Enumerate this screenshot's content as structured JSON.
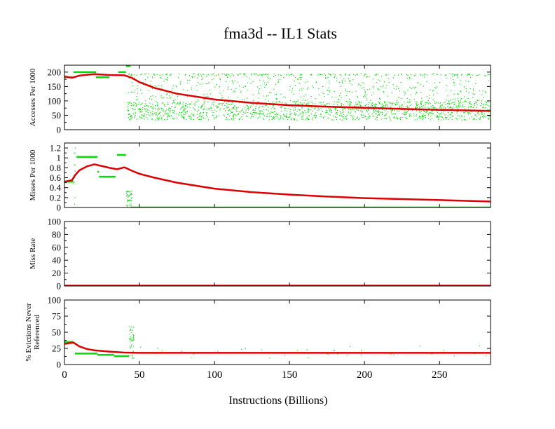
{
  "chart_data": {
    "type": "scatter",
    "title": "fma3d -- IL1  Stats",
    "xlabel": "Instructions (Billions)",
    "xlim": [
      0,
      284
    ],
    "xticks": [
      0,
      50,
      100,
      150,
      200,
      250
    ],
    "colors": {
      "cumulative": "#dd0000",
      "interval": "#00dd00"
    },
    "panels": [
      {
        "ylabel": [
          "Accesses Per 1000"
        ],
        "ylim": [
          0,
          224
        ],
        "yticks": [
          0,
          50,
          100,
          150,
          200
        ],
        "cumulative": [
          [
            0,
            185
          ],
          [
            5,
            180
          ],
          [
            10,
            188
          ],
          [
            20,
            193
          ],
          [
            30,
            190
          ],
          [
            40,
            189
          ],
          [
            45,
            180
          ],
          [
            50,
            165
          ],
          [
            60,
            145
          ],
          [
            75,
            125
          ],
          [
            100,
            105
          ],
          [
            125,
            93
          ],
          [
            150,
            85
          ],
          [
            175,
            80
          ],
          [
            200,
            76
          ],
          [
            225,
            72
          ],
          [
            250,
            69
          ],
          [
            284,
            65
          ]
        ],
        "interval_segments": [
          [
            6,
            21,
            200
          ],
          [
            21,
            30,
            182
          ],
          [
            36,
            41,
            200
          ],
          [
            41,
            44,
            221
          ],
          [
            0,
            6,
            182
          ]
        ],
        "interval_bands": [
          {
            "x": [
              42,
              284
            ],
            "y": [
              35,
              100
            ],
            "count": 1400
          },
          {
            "x": [
              42,
              284
            ],
            "y": [
              100,
              195
            ],
            "count": 500
          },
          {
            "x": [
              42,
              284
            ],
            "y": [
              190,
              196
            ],
            "count": 150
          }
        ]
      },
      {
        "ylabel": [
          "Misses Per 1000"
        ],
        "ylim": [
          0,
          1.3
        ],
        "yticks": [
          0,
          0.2,
          0.4,
          0.6,
          0.8,
          1,
          1.2
        ],
        "cumulative": [
          [
            0,
            0.52
          ],
          [
            5,
            0.55
          ],
          [
            7,
            0.65
          ],
          [
            10,
            0.75
          ],
          [
            15,
            0.83
          ],
          [
            20,
            0.87
          ],
          [
            30,
            0.8
          ],
          [
            35,
            0.77
          ],
          [
            40,
            0.81
          ],
          [
            45,
            0.74
          ],
          [
            50,
            0.68
          ],
          [
            60,
            0.6
          ],
          [
            75,
            0.5
          ],
          [
            100,
            0.38
          ],
          [
            125,
            0.31
          ],
          [
            150,
            0.26
          ],
          [
            175,
            0.22
          ],
          [
            200,
            0.19
          ],
          [
            225,
            0.17
          ],
          [
            250,
            0.15
          ],
          [
            284,
            0.12
          ]
        ],
        "interval_segments": [
          [
            0,
            6,
            0.52
          ],
          [
            8,
            22,
            1.02
          ],
          [
            22,
            23,
            0.72
          ],
          [
            23,
            34,
            0.62
          ],
          [
            35,
            41,
            1.06
          ],
          [
            44,
            284,
            0
          ]
        ],
        "interval_bands": [
          {
            "x": [
              41,
              45
            ],
            "y": [
              0,
              0.35
            ],
            "count": 40
          },
          {
            "x": [
              6,
              7
            ],
            "y": [
              0,
              1.28
            ],
            "count": 12
          }
        ]
      },
      {
        "ylabel": [
          "Miss Rate"
        ],
        "ylim": [
          0,
          100
        ],
        "yticks": [
          0,
          20,
          40,
          60,
          80,
          100
        ],
        "cumulative": [
          [
            0,
            0.5
          ],
          [
            284,
            0.5
          ]
        ],
        "interval_segments": [
          [
            6,
            22,
            0
          ],
          [
            35,
            40,
            0
          ]
        ],
        "interval_bands": []
      },
      {
        "ylabel": [
          "% Evictions Never",
          "Referenced"
        ],
        "ylim": [
          0,
          100
        ],
        "yticks": [
          0,
          25,
          50,
          75,
          100
        ],
        "cumulative": [
          [
            0,
            32
          ],
          [
            3,
            33
          ],
          [
            6,
            34
          ],
          [
            10,
            28
          ],
          [
            15,
            24
          ],
          [
            20,
            22
          ],
          [
            30,
            20
          ],
          [
            40,
            18.5
          ],
          [
            50,
            18
          ],
          [
            284,
            18
          ]
        ],
        "interval_segments": [
          [
            0,
            6,
            35
          ],
          [
            7,
            22,
            17
          ],
          [
            22,
            33,
            15
          ],
          [
            33,
            43,
            13
          ]
        ],
        "interval_bands": [
          {
            "x": [
              43,
              46
            ],
            "y": [
              8,
              60
            ],
            "count": 40
          },
          {
            "x": [
              46,
              284
            ],
            "y": [
              10,
              30
            ],
            "count": 40
          }
        ]
      }
    ]
  }
}
